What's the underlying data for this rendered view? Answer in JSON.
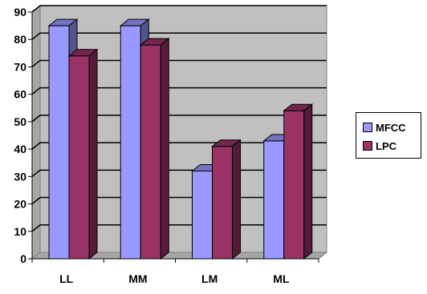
{
  "chart_data": {
    "type": "bar",
    "categories": [
      "LL",
      "MM",
      "LM",
      "ML"
    ],
    "series": [
      {
        "name": "MFCC",
        "values": [
          85,
          85,
          32,
          43
        ],
        "color": "#9999ff"
      },
      {
        "name": "LPC",
        "values": [
          74,
          78,
          41,
          54
        ],
        "color": "#993366"
      }
    ],
    "ylim": [
      0,
      90
    ],
    "yticks": [
      "0",
      "10",
      "20",
      "30",
      "40",
      "50",
      "60",
      "70",
      "80",
      "90"
    ],
    "grid": true,
    "legend_position": "right",
    "plot_background": "#c0c0c0",
    "three_d": true
  }
}
